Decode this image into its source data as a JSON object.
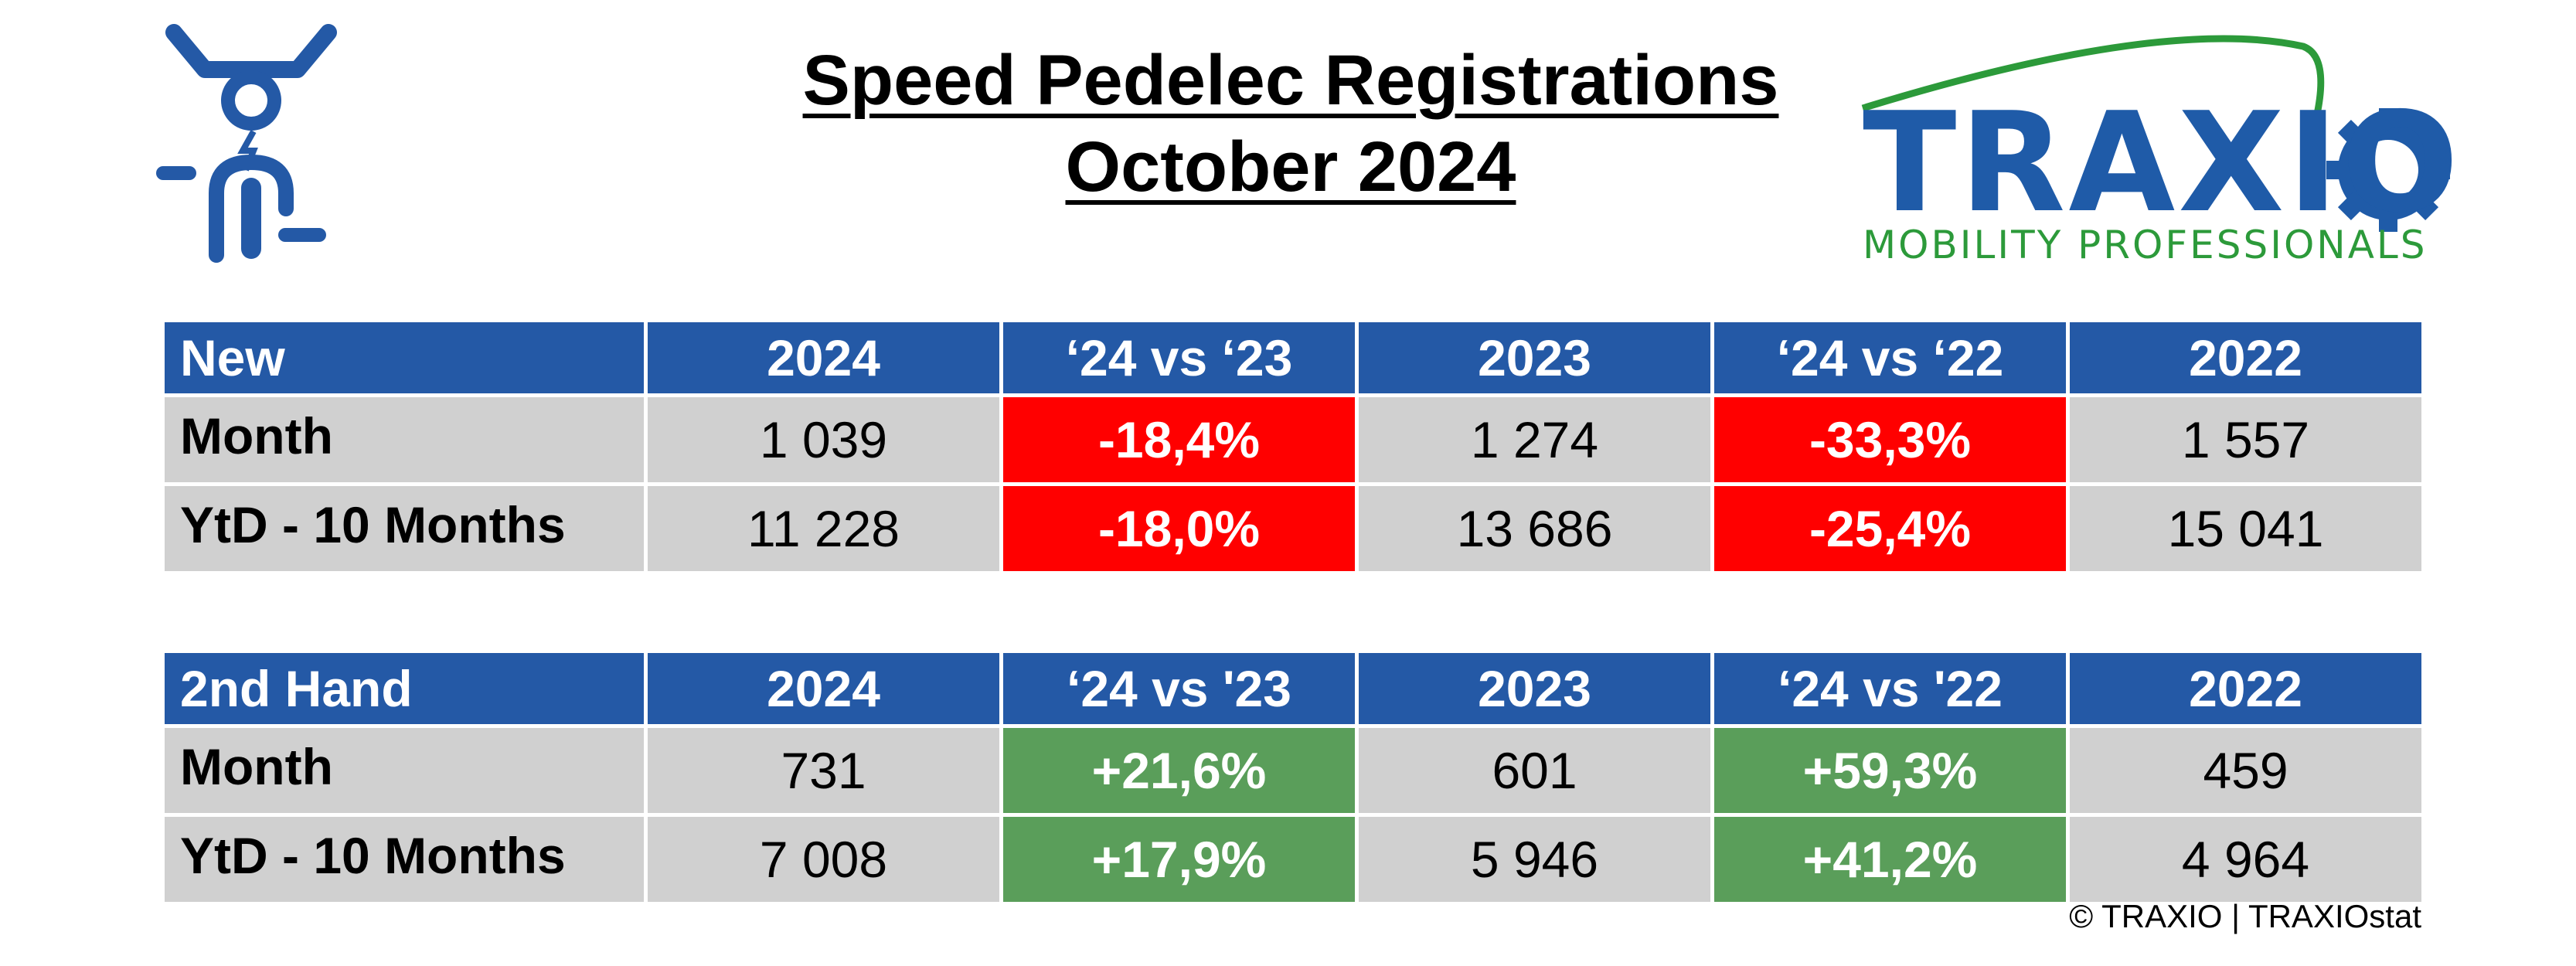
{
  "header": {
    "title_line1": "Speed Pedelec Registrations",
    "title_line2": "October 2024"
  },
  "logo": {
    "brand": "TRAXIO",
    "tagline": "MOBILITY PROFESSIONALS",
    "brand_color": "#1f5ba8",
    "tagline_color": "#2c9a3a"
  },
  "tables": [
    {
      "name": "new",
      "headers": [
        "New",
        "2024",
        "‘24 vs ‘23",
        "2023",
        "‘24 vs ‘22",
        "2022"
      ],
      "rows": [
        {
          "label": "Month",
          "v2024": "1 039",
          "d23": "-18,4%",
          "v2023": "1 274",
          "d22": "-33,3%",
          "v2022": "1 557"
        },
        {
          "label": "YtD - 10 Months",
          "v2024": "11 228",
          "d23": "-18,0%",
          "v2023": "13 686",
          "d22": "-25,4%",
          "v2022": "15 041"
        }
      ]
    },
    {
      "name": "second-hand",
      "headers": [
        "2nd Hand",
        "2024",
        "‘24 vs '23",
        "2023",
        "‘24 vs '22",
        "2022"
      ],
      "rows": [
        {
          "label": "Month",
          "v2024": "731",
          "d23": "+21,6%",
          "v2023": "601",
          "d22": "+59,3%",
          "v2022": "459"
        },
        {
          "label": "YtD - 10 Months",
          "v2024": "7 008",
          "d23": "+17,9%",
          "v2023": "5 946",
          "d22": "+41,2%",
          "v2022": "4 964"
        }
      ]
    }
  ],
  "colors": {
    "header_bg": "#2459a6",
    "cell_bg": "#d0d0d0",
    "negative_bg": "#ff0000",
    "positive_bg": "#5a9e5a"
  },
  "footer": {
    "copyright": "© TRAXIO | TRAXIOstat"
  }
}
